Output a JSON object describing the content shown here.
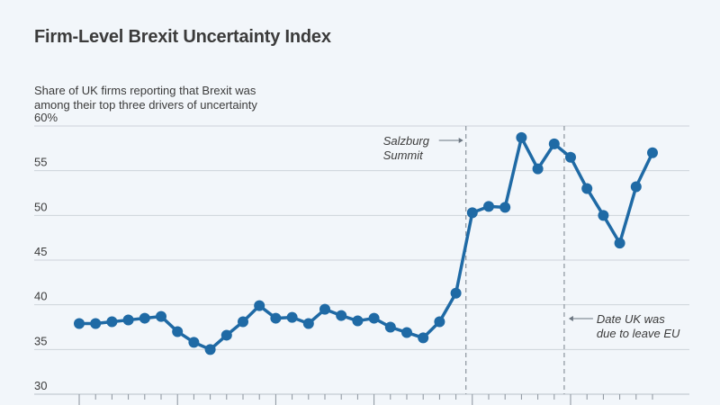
{
  "chart_data": {
    "type": "line",
    "title": "Firm-Level Brexit Uncertainty Index",
    "ylabel": [
      "Share of UK firms reporting that Brexit was",
      "among their top three drivers of uncertainty"
    ],
    "ylim": [
      30,
      60
    ],
    "yticks": [
      30,
      35,
      40,
      45,
      50,
      55,
      60
    ],
    "ytick_labels": [
      "30",
      "35",
      "40",
      "45",
      "50",
      "55",
      "60%"
    ],
    "grid": true,
    "series": [
      {
        "color": "#1f6aa5",
        "values": [
          37.9,
          37.9,
          38.1,
          38.3,
          38.5,
          38.7,
          37.0,
          35.8,
          35.0,
          36.6,
          38.1,
          39.9,
          38.5,
          38.6,
          37.9,
          39.5,
          38.8,
          38.2,
          38.5,
          37.5,
          36.9,
          36.3,
          38.1,
          41.3,
          50.3,
          51.0,
          50.9,
          58.7,
          55.2,
          58.0,
          56.5,
          53.0,
          50.0,
          46.9,
          53.2,
          57.0
        ]
      }
    ],
    "annotations": [
      {
        "label": [
          "Salzburg",
          "Summit"
        ],
        "after_index": 23,
        "arrow": "right"
      },
      {
        "label": [
          "Date UK was",
          "due to leave EU"
        ],
        "after_index": 29,
        "arrow": "left"
      }
    ]
  }
}
